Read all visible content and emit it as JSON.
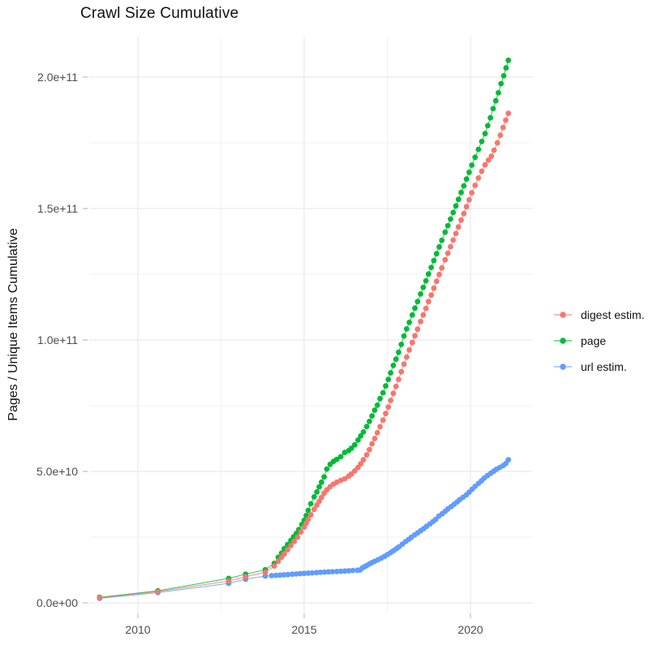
{
  "chart": {
    "title": "Crawl Size Cumulative"
  },
  "chart_data": {
    "type": "line",
    "title": "Crawl Size Cumulative",
    "xlabel": "",
    "ylabel": "Pages / Unique Items Cumulative",
    "x_unit": "calendar year (decimal)",
    "y_unit": "count, stored as billions (1e9); axis labels in scientific notation",
    "xlim": [
      2008.5,
      2021.9
    ],
    "ylim_e9": [
      -4,
      215
    ],
    "grid": true,
    "legend_position": "right",
    "x_ticks": {
      "major": [
        {
          "value": 2010,
          "label": "2010"
        },
        {
          "value": 2015,
          "label": "2015"
        },
        {
          "value": 2020,
          "label": "2020"
        }
      ],
      "minor": [
        2012.5,
        2017.5
      ]
    },
    "y_ticks": {
      "major": [
        {
          "value_e9": 0,
          "label": "0.0e+00"
        },
        {
          "value_e9": 50,
          "label": "5.0e+10"
        },
        {
          "value_e9": 100,
          "label": "1.0e+11"
        },
        {
          "value_e9": 150,
          "label": "1.5e+11"
        },
        {
          "value_e9": 200,
          "label": "2.0e+11"
        }
      ],
      "minor_e9": [
        25,
        75,
        125,
        175
      ]
    },
    "series": [
      {
        "name": "digest estim.",
        "color": "#F8766D",
        "points": [
          [
            2008.85,
            1.9
          ],
          [
            2010.6,
            4.3
          ],
          [
            2012.73,
            8.3
          ],
          [
            2013.24,
            9.9
          ],
          [
            2013.83,
            11.6
          ],
          [
            2014.1,
            14.0
          ],
          [
            2014.22,
            15.8
          ],
          [
            2014.32,
            17.3
          ],
          [
            2014.4,
            18.6
          ],
          [
            2014.5,
            20.2
          ],
          [
            2014.6,
            21.8
          ],
          [
            2014.7,
            23.4
          ],
          [
            2014.8,
            25.0
          ],
          [
            2014.9,
            27.0
          ],
          [
            2015.0,
            28.8
          ],
          [
            2015.06,
            30.3
          ],
          [
            2015.12,
            31.8
          ],
          [
            2015.2,
            33.5
          ],
          [
            2015.3,
            35.6
          ],
          [
            2015.38,
            37.2
          ],
          [
            2015.45,
            38.6
          ],
          [
            2015.52,
            40.1
          ],
          [
            2015.6,
            41.7
          ],
          [
            2015.68,
            43.0
          ],
          [
            2015.78,
            44.2
          ],
          [
            2015.88,
            45.2
          ],
          [
            2015.98,
            45.9
          ],
          [
            2016.1,
            46.6
          ],
          [
            2016.22,
            47.2
          ],
          [
            2016.34,
            48.2
          ],
          [
            2016.42,
            49.0
          ],
          [
            2016.52,
            50.2
          ],
          [
            2016.62,
            51.5
          ],
          [
            2016.7,
            52.9
          ],
          [
            2016.78,
            54.4
          ],
          [
            2016.88,
            56.3
          ],
          [
            2016.96,
            58.3
          ],
          [
            2017.04,
            60.5
          ],
          [
            2017.12,
            62.5
          ],
          [
            2017.2,
            64.7
          ],
          [
            2017.28,
            67.0
          ],
          [
            2017.37,
            69.5
          ],
          [
            2017.45,
            72.0
          ],
          [
            2017.53,
            74.5
          ],
          [
            2017.6,
            77.0
          ],
          [
            2017.68,
            79.7
          ],
          [
            2017.76,
            82.3
          ],
          [
            2017.84,
            85.0
          ],
          [
            2017.92,
            87.9
          ],
          [
            2018.0,
            90.8
          ],
          [
            2018.08,
            93.5
          ],
          [
            2018.16,
            96.2
          ],
          [
            2018.25,
            99.0
          ],
          [
            2018.33,
            101.6
          ],
          [
            2018.41,
            104.1
          ],
          [
            2018.5,
            107.0
          ],
          [
            2018.58,
            109.5
          ],
          [
            2018.66,
            112.0
          ],
          [
            2018.74,
            114.6
          ],
          [
            2018.82,
            117.1
          ],
          [
            2018.9,
            119.7
          ],
          [
            2018.98,
            122.3
          ],
          [
            2019.06,
            124.9
          ],
          [
            2019.14,
            127.4
          ],
          [
            2019.24,
            130.5
          ],
          [
            2019.32,
            133.0
          ],
          [
            2019.4,
            135.5
          ],
          [
            2019.48,
            138.0
          ],
          [
            2019.56,
            140.5
          ],
          [
            2019.64,
            143.0
          ],
          [
            2019.72,
            145.6
          ],
          [
            2019.8,
            148.1
          ],
          [
            2019.88,
            150.7
          ],
          [
            2019.96,
            153.3
          ],
          [
            2020.04,
            156.0
          ],
          [
            2020.14,
            158.8
          ],
          [
            2020.24,
            161.6
          ],
          [
            2020.34,
            164.2
          ],
          [
            2020.44,
            166.6
          ],
          [
            2020.54,
            168.4
          ],
          [
            2020.63,
            169.9
          ],
          [
            2020.71,
            172.2
          ],
          [
            2020.81,
            175.0
          ],
          [
            2020.9,
            177.9
          ],
          [
            2020.98,
            180.8
          ],
          [
            2021.06,
            183.6
          ],
          [
            2021.14,
            186.2
          ]
        ]
      },
      {
        "name": "page",
        "color": "#00BA38",
        "points": [
          [
            2008.85,
            2.1
          ],
          [
            2010.6,
            4.6
          ],
          [
            2012.73,
            9.3
          ],
          [
            2013.24,
            10.9
          ],
          [
            2013.83,
            12.6
          ],
          [
            2014.1,
            15.0
          ],
          [
            2014.22,
            17.3
          ],
          [
            2014.32,
            18.9
          ],
          [
            2014.4,
            20.6
          ],
          [
            2014.5,
            22.2
          ],
          [
            2014.6,
            23.7
          ],
          [
            2014.68,
            25.1
          ],
          [
            2014.76,
            26.4
          ],
          [
            2014.84,
            27.9
          ],
          [
            2014.93,
            29.8
          ],
          [
            2015.0,
            31.4
          ],
          [
            2015.06,
            33.2
          ],
          [
            2015.12,
            35.2
          ],
          [
            2015.2,
            37.7
          ],
          [
            2015.3,
            40.3
          ],
          [
            2015.38,
            42.2
          ],
          [
            2015.45,
            44.1
          ],
          [
            2015.52,
            45.9
          ],
          [
            2015.6,
            47.9
          ],
          [
            2015.68,
            50.9
          ],
          [
            2015.78,
            52.7
          ],
          [
            2015.88,
            53.8
          ],
          [
            2015.98,
            54.6
          ],
          [
            2016.1,
            55.6
          ],
          [
            2016.22,
            57.2
          ],
          [
            2016.34,
            57.9
          ],
          [
            2016.42,
            58.8
          ],
          [
            2016.52,
            60.1
          ],
          [
            2016.62,
            61.9
          ],
          [
            2016.7,
            63.5
          ],
          [
            2016.78,
            65.0
          ],
          [
            2016.88,
            67.1
          ],
          [
            2016.96,
            69.0
          ],
          [
            2017.04,
            71.1
          ],
          [
            2017.12,
            73.3
          ],
          [
            2017.2,
            75.2
          ],
          [
            2017.28,
            77.7
          ],
          [
            2017.37,
            79.9
          ],
          [
            2017.45,
            82.5
          ],
          [
            2017.53,
            85.0
          ],
          [
            2017.6,
            87.5
          ],
          [
            2017.68,
            90.3
          ],
          [
            2017.76,
            92.7
          ],
          [
            2017.84,
            95.3
          ],
          [
            2017.92,
            98.3
          ],
          [
            2018.0,
            101.5
          ],
          [
            2018.08,
            104.2
          ],
          [
            2018.16,
            106.7
          ],
          [
            2018.25,
            109.5
          ],
          [
            2018.33,
            112.1
          ],
          [
            2018.41,
            114.6
          ],
          [
            2018.5,
            117.5
          ],
          [
            2018.58,
            120.0
          ],
          [
            2018.66,
            122.5
          ],
          [
            2018.74,
            125.1
          ],
          [
            2018.82,
            127.6
          ],
          [
            2018.9,
            130.2
          ],
          [
            2018.98,
            132.8
          ],
          [
            2019.06,
            135.4
          ],
          [
            2019.14,
            137.9
          ],
          [
            2019.24,
            141.0
          ],
          [
            2019.32,
            143.5
          ],
          [
            2019.4,
            146.0
          ],
          [
            2019.48,
            148.5
          ],
          [
            2019.56,
            151.0
          ],
          [
            2019.64,
            153.5
          ],
          [
            2019.72,
            156.1
          ],
          [
            2019.8,
            158.6
          ],
          [
            2019.88,
            161.2
          ],
          [
            2019.96,
            163.8
          ],
          [
            2020.04,
            166.5
          ],
          [
            2020.14,
            169.5
          ],
          [
            2020.24,
            172.5
          ],
          [
            2020.34,
            175.5
          ],
          [
            2020.44,
            178.5
          ],
          [
            2020.52,
            181.5
          ],
          [
            2020.6,
            184.5
          ],
          [
            2020.68,
            188.0
          ],
          [
            2020.76,
            191.0
          ],
          [
            2020.84,
            194.0
          ],
          [
            2020.92,
            197.5
          ],
          [
            2021.0,
            200.5
          ],
          [
            2021.07,
            203.5
          ],
          [
            2021.14,
            206.4
          ]
        ]
      },
      {
        "name": "url estim.",
        "color": "#619CFF",
        "points": [
          [
            2008.85,
            1.7
          ],
          [
            2010.6,
            3.9
          ],
          [
            2012.73,
            7.4
          ],
          [
            2013.24,
            9.0
          ],
          [
            2013.83,
            10.2
          ],
          [
            2014.02,
            10.35
          ],
          [
            2014.15,
            10.45
          ],
          [
            2014.27,
            10.55
          ],
          [
            2014.39,
            10.65
          ],
          [
            2014.51,
            10.75
          ],
          [
            2014.64,
            10.9
          ],
          [
            2014.76,
            11.0
          ],
          [
            2014.88,
            11.1
          ],
          [
            2015.0,
            11.2
          ],
          [
            2015.12,
            11.3
          ],
          [
            2015.24,
            11.4
          ],
          [
            2015.37,
            11.5
          ],
          [
            2015.49,
            11.6
          ],
          [
            2015.61,
            11.7
          ],
          [
            2015.73,
            11.8
          ],
          [
            2015.85,
            11.85
          ],
          [
            2015.98,
            11.9
          ],
          [
            2016.1,
            12.0
          ],
          [
            2016.22,
            12.1
          ],
          [
            2016.34,
            12.2
          ],
          [
            2016.46,
            12.3
          ],
          [
            2016.6,
            12.4
          ],
          [
            2016.68,
            12.5
          ],
          [
            2016.75,
            13.3
          ],
          [
            2016.82,
            13.8
          ],
          [
            2016.88,
            14.2
          ],
          [
            2016.96,
            14.8
          ],
          [
            2017.04,
            15.3
          ],
          [
            2017.12,
            15.8
          ],
          [
            2017.22,
            16.4
          ],
          [
            2017.32,
            17.0
          ],
          [
            2017.42,
            17.7
          ],
          [
            2017.51,
            18.4
          ],
          [
            2017.6,
            19.1
          ],
          [
            2017.68,
            19.8
          ],
          [
            2017.77,
            20.6
          ],
          [
            2017.85,
            21.3
          ],
          [
            2017.95,
            22.3
          ],
          [
            2018.05,
            23.3
          ],
          [
            2018.14,
            24.1
          ],
          [
            2018.22,
            24.9
          ],
          [
            2018.32,
            25.8
          ],
          [
            2018.41,
            26.6
          ],
          [
            2018.5,
            27.4
          ],
          [
            2018.59,
            28.2
          ],
          [
            2018.68,
            29.1
          ],
          [
            2018.78,
            30.0
          ],
          [
            2018.87,
            30.9
          ],
          [
            2018.95,
            31.7
          ],
          [
            2019.05,
            33.0
          ],
          [
            2019.15,
            33.9
          ],
          [
            2019.24,
            34.8
          ],
          [
            2019.32,
            35.7
          ],
          [
            2019.42,
            36.6
          ],
          [
            2019.51,
            37.5
          ],
          [
            2019.6,
            38.4
          ],
          [
            2019.68,
            39.3
          ],
          [
            2019.78,
            40.2
          ],
          [
            2019.88,
            41.1
          ],
          [
            2019.96,
            42.1
          ],
          [
            2020.05,
            43.2
          ],
          [
            2020.14,
            44.3
          ],
          [
            2020.24,
            45.4
          ],
          [
            2020.33,
            46.4
          ],
          [
            2020.41,
            47.4
          ],
          [
            2020.51,
            48.4
          ],
          [
            2020.61,
            49.3
          ],
          [
            2020.7,
            50.1
          ],
          [
            2020.78,
            50.8
          ],
          [
            2020.88,
            51.5
          ],
          [
            2020.98,
            52.2
          ],
          [
            2021.06,
            53.0
          ],
          [
            2021.14,
            54.4
          ]
        ]
      }
    ]
  },
  "style": {
    "grid_major_color": "#e5e5e5",
    "grid_minor_color": "#f2f2f2",
    "tick_mark_color": "#c8c8c8",
    "tick_label_color": "#4d4d4d",
    "text_color": "#111111"
  }
}
